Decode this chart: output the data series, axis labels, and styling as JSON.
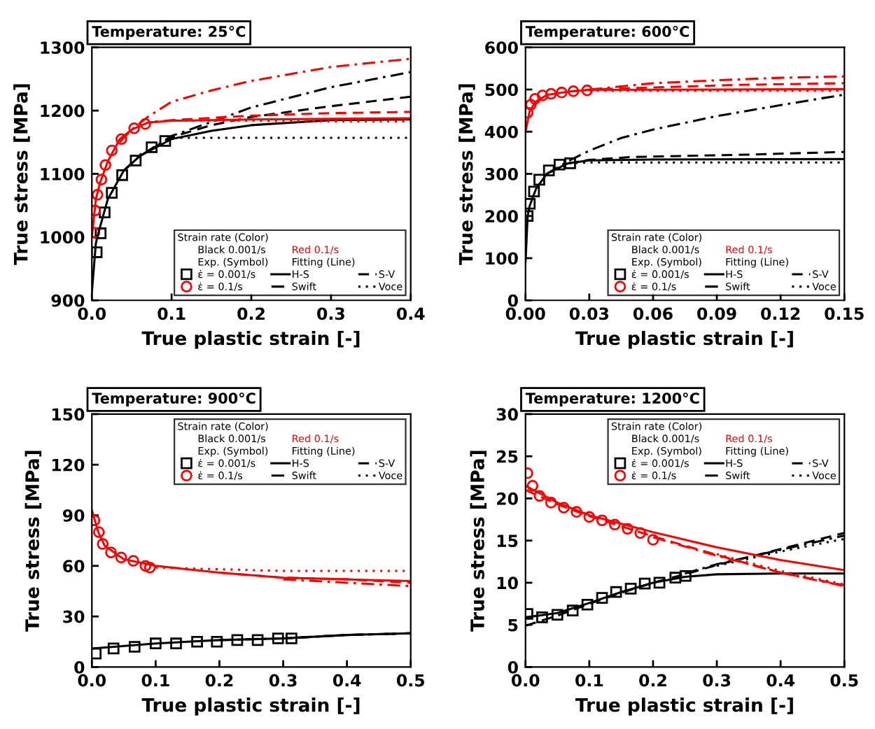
{
  "chart_data": [
    {
      "type": "line",
      "title": "Temperature: 25°C",
      "xlabel": "True plastic strain [-]",
      "ylabel": "True stress [MPa]",
      "xlim": [
        0,
        0.4
      ],
      "ylim": [
        900,
        1300
      ],
      "xticks": [
        {
          "value": 0,
          "label": "0.0"
        },
        0.1,
        0.2,
        0.3,
        0.4
      ],
      "yticks": [
        900,
        1000,
        1100,
        1200,
        1300
      ],
      "grid": false,
      "legend": "bottom right",
      "legend_title": "Strain rate (Color)",
      "annotations": [
        "Black 0.001/s",
        "Red 0.1/s",
        "Exp. (Symbol)",
        "Fitting (Line)"
      ],
      "series": [
        {
          "type": "scatter",
          "name": "ε̇ = 0.001/s",
          "color": "#000000",
          "marker": "square",
          "x": [
            0.006,
            0.011,
            0.016,
            0.025,
            0.038,
            0.055,
            0.075,
            0.092
          ],
          "values": [
            976,
            1006,
            1039,
            1070,
            1098,
            1121,
            1142,
            1152
          ]
        },
        {
          "type": "scatter",
          "name": "ε̇ = 0.1/s",
          "color": "#ff0000",
          "marker": "circle",
          "x": [
            0.003,
            0.004,
            0.007,
            0.012,
            0.017,
            0.025,
            0.037,
            0.053,
            0.067
          ],
          "values": [
            1007,
            1042,
            1067,
            1091,
            1114,
            1137,
            1155,
            1172,
            1179
          ]
        },
        {
          "name": "H-S",
          "color": "#000000",
          "line_style": "solid",
          "x": [
            0,
            0.005,
            0.01,
            0.02,
            0.04,
            0.06,
            0.1,
            0.15,
            0.2,
            0.3,
            0.4
          ],
          "values": [
            913,
            990,
            1015,
            1060,
            1105,
            1128,
            1155,
            1168,
            1177,
            1185,
            1186
          ]
        },
        {
          "name": "S-V",
          "color": "#000000",
          "line_style": "dashed",
          "x": [
            0.04,
            0.06,
            0.1,
            0.15,
            0.2,
            0.3,
            0.4
          ],
          "values": [
            1105,
            1128,
            1158,
            1177,
            1190,
            1207,
            1222
          ]
        },
        {
          "name": "Swift",
          "color": "#000000",
          "line_style": "dashdot",
          "x": [
            0.04,
            0.06,
            0.1,
            0.15,
            0.2,
            0.3,
            0.4
          ],
          "values": [
            1105,
            1128,
            1160,
            1182,
            1205,
            1237,
            1261
          ]
        },
        {
          "name": "Voce",
          "color": "#000000",
          "line_style": "dotted",
          "x": [
            0.06,
            0.1,
            0.2,
            0.3,
            0.4
          ],
          "values": [
            1130,
            1157,
            1157,
            1157,
            1157
          ]
        },
        {
          "color": "#ff0000",
          "line_style": "solid",
          "x": [
            0,
            0.005,
            0.01,
            0.02,
            0.035,
            0.05,
            0.07,
            0.1,
            0.2,
            0.3,
            0.4
          ],
          "values": [
            1000,
            1060,
            1085,
            1120,
            1155,
            1170,
            1181,
            1184,
            1186,
            1187,
            1188
          ]
        },
        {
          "color": "#ff0000",
          "line_style": "dashed",
          "x": [
            0.07,
            0.1,
            0.2,
            0.3,
            0.4
          ],
          "values": [
            1181,
            1185,
            1192,
            1196,
            1198
          ]
        },
        {
          "color": "#ff0000",
          "line_style": "dashdot",
          "x": [
            0.035,
            0.05,
            0.07,
            0.1,
            0.15,
            0.2,
            0.3,
            0.4
          ],
          "values": [
            1150,
            1170,
            1190,
            1214,
            1232,
            1247,
            1269,
            1282
          ]
        },
        {
          "color": "#ff0000",
          "line_style": "dotted",
          "x": [
            0.07,
            0.1,
            0.2,
            0.3,
            0.4
          ],
          "values": [
            1182,
            1184,
            1184,
            1183,
            1183
          ]
        }
      ]
    },
    {
      "type": "line",
      "title": "Temperature: 600°C",
      "xlabel": "True plastic strain [-]",
      "ylabel": "True stress [MPa]",
      "xlim": [
        0,
        0.15
      ],
      "ylim": [
        0,
        600
      ],
      "xticks": [
        {
          "value": 0,
          "label": "0.00"
        },
        {
          "value": 0.03,
          "label": "0.03"
        },
        {
          "value": 0.06,
          "label": "0.06"
        },
        {
          "value": 0.09,
          "label": "0.09"
        },
        {
          "value": 0.12,
          "label": "0.12"
        },
        {
          "value": 0.15,
          "label": "0.15"
        }
      ],
      "yticks": [
        0,
        100,
        200,
        300,
        400,
        500,
        600
      ],
      "grid": false,
      "legend": "bottom right",
      "legend_title": "Strain rate (Color)",
      "annotations": [
        "Black 0.001/s",
        "Red 0.1/s",
        "Exp. (Symbol)",
        "Fitting (Line)"
      ],
      "series": [
        {
          "type": "scatter",
          "name": "ε̇ = 0.001/s",
          "color": "#000000",
          "marker": "square",
          "x": [
            0.001,
            0.002,
            0.004,
            0.0065,
            0.011,
            0.016,
            0.021
          ],
          "values": [
            200,
            229,
            258,
            286,
            308,
            322,
            325
          ]
        },
        {
          "type": "scatter",
          "name": "ε̇ = 0.1/s",
          "color": "#ff0000",
          "marker": "circle",
          "x": [
            0.001,
            0.0025,
            0.0045,
            0.008,
            0.012,
            0.017,
            0.0225,
            0.029
          ],
          "values": [
            445,
            464,
            478,
            486,
            490,
            493,
            496,
            498
          ]
        },
        {
          "name": "H-S",
          "color": "#000000",
          "line_style": "solid",
          "x": [
            0,
            0.001,
            0.002,
            0.005,
            0.01,
            0.02,
            0.03,
            0.06,
            0.15
          ],
          "values": [
            90,
            200,
            225,
            265,
            300,
            325,
            332,
            334,
            335
          ]
        },
        {
          "name": "S-V",
          "color": "#000000",
          "line_style": "dashed",
          "x": [
            0.02,
            0.03,
            0.05,
            0.1,
            0.15
          ],
          "values": [
            325,
            333,
            340,
            345,
            352
          ]
        },
        {
          "name": "Swift",
          "color": "#000000",
          "line_style": "dashdot",
          "x": [
            0.01,
            0.02,
            0.03,
            0.045,
            0.06,
            0.09,
            0.12,
            0.15
          ],
          "values": [
            300,
            330,
            355,
            385,
            405,
            437,
            463,
            488
          ]
        },
        {
          "name": "Voce",
          "color": "#000000",
          "line_style": "dotted",
          "x": [
            0.02,
            0.03,
            0.15
          ],
          "values": [
            325,
            327,
            327
          ]
        },
        {
          "color": "#ff0000",
          "line_style": "solid",
          "x": [
            0,
            0.002,
            0.005,
            0.01,
            0.02,
            0.03,
            0.15
          ],
          "values": [
            400,
            450,
            472,
            487,
            495,
            499,
            501
          ]
        },
        {
          "color": "#ff0000",
          "line_style": "dashed",
          "x": [
            0.02,
            0.03,
            0.06,
            0.1,
            0.15
          ],
          "values": [
            495,
            500,
            505,
            511,
            515
          ]
        },
        {
          "color": "#ff0000",
          "line_style": "dashdot",
          "x": [
            0.03,
            0.06,
            0.09,
            0.12,
            0.15
          ],
          "values": [
            500,
            515,
            522,
            528,
            531
          ]
        },
        {
          "color": "#ff0000",
          "line_style": "dotted",
          "x": [
            0.03,
            0.15
          ],
          "values": [
            497,
            497
          ]
        }
      ]
    },
    {
      "type": "line",
      "title": "Temperature: 900°C",
      "xlabel": "True plastic strain [-]",
      "ylabel": "True stress [MPa]",
      "xlim": [
        0,
        0.5
      ],
      "ylim": [
        0,
        150
      ],
      "xticks": [
        {
          "value": 0,
          "label": "0.0"
        },
        0.1,
        0.2,
        0.3,
        0.4,
        0.5
      ],
      "yticks": [
        0,
        30,
        60,
        90,
        120,
        150
      ],
      "grid": false,
      "legend": "top right",
      "legend_title": "Strain rate (Color)",
      "annotations": [
        "Black 0.001/s",
        "Red 0.1/s",
        "Exp. (Symbol)",
        "Fitting (Line)"
      ],
      "series": [
        {
          "type": "scatter",
          "name": "ε̇ = 0.001/s",
          "color": "#000000",
          "marker": "square",
          "x": [
            0.006,
            0.034,
            0.067,
            0.1,
            0.132,
            0.165,
            0.196,
            0.228,
            0.26,
            0.292,
            0.313
          ],
          "values": [
            8,
            11,
            12,
            14,
            14,
            15,
            15,
            16,
            16,
            17,
            17
          ]
        },
        {
          "type": "scatter",
          "name": "ε̇ = 0.1/s",
          "color": "#ff0000",
          "marker": "circle",
          "x": [
            0.004,
            0.011,
            0.017,
            0.03,
            0.046,
            0.065,
            0.084,
            0.091
          ],
          "values": [
            87,
            80,
            73,
            68,
            65,
            63,
            60,
            59
          ]
        },
        {
          "name": "H-S",
          "color": "#000000",
          "line_style": "solid",
          "x": [
            0,
            0.1,
            0.2,
            0.3,
            0.4,
            0.5
          ],
          "values": [
            11,
            14,
            16,
            17,
            19,
            20
          ]
        },
        {
          "name": "S-V",
          "color": "#000000",
          "line_style": "dashed",
          "x": [
            0.3,
            0.4,
            0.5
          ],
          "values": [
            17,
            19,
            20
          ]
        },
        {
          "name": "Swift",
          "color": "#000000",
          "line_style": "dashdot",
          "x": [
            0.2,
            0.3,
            0.4,
            0.5
          ],
          "values": [
            16,
            17,
            19,
            20
          ]
        },
        {
          "name": "Voce",
          "color": "#000000",
          "line_style": "dotted",
          "x": [
            0.4,
            0.5
          ],
          "values": [
            19,
            20
          ]
        },
        {
          "color": "#ff0000",
          "line_style": "solid",
          "x": [
            0,
            0.01,
            0.02,
            0.05,
            0.1,
            0.2,
            0.3,
            0.4,
            0.5
          ],
          "values": [
            93,
            80,
            72,
            64,
            60,
            56,
            53,
            52,
            51
          ]
        },
        {
          "color": "#ff0000",
          "line_style": "dashed",
          "x": [
            0.2,
            0.3,
            0.4,
            0.5
          ],
          "values": [
            56,
            53,
            52,
            50
          ]
        },
        {
          "color": "#ff0000",
          "line_style": "dashdot",
          "x": [
            0.3,
            0.4,
            0.5
          ],
          "values": [
            52,
            50,
            48
          ]
        },
        {
          "color": "#ff0000",
          "line_style": "dotted",
          "x": [
            0.1,
            0.2,
            0.3,
            0.4,
            0.5
          ],
          "values": [
            59,
            58,
            57,
            57,
            57
          ]
        }
      ]
    },
    {
      "type": "line",
      "title": "Temperature: 1200°C",
      "xlabel": "True plastic strain [-]",
      "ylabel": "True stress [MPa]",
      "xlim": [
        0,
        0.5
      ],
      "ylim": [
        0,
        30
      ],
      "xticks": [
        {
          "value": 0,
          "label": "0.0"
        },
        0.1,
        0.2,
        0.3,
        0.4,
        0.5
      ],
      "yticks": [
        0,
        5,
        10,
        15,
        20,
        25,
        30
      ],
      "grid": false,
      "legend": "top right",
      "legend_title": "Strain rate (Color)",
      "annotations": [
        "Black 0.001/s",
        "Red 0.1/s",
        "Exp. (Symbol)",
        "Fitting (Line)"
      ],
      "series": [
        {
          "type": "scatter",
          "name": "ε̇ = 0.001/s",
          "color": "#000000",
          "marker": "square",
          "x": [
            0.003,
            0.026,
            0.05,
            0.074,
            0.097,
            0.12,
            0.142,
            0.165,
            0.187,
            0.21,
            0.235,
            0.251
          ],
          "values": [
            6.3,
            5.9,
            6.2,
            6.7,
            7.4,
            8.2,
            8.9,
            9.3,
            9.9,
            10,
            10.6,
            10.8
          ]
        },
        {
          "type": "scatter",
          "name": "ε̇ = 0.1/s",
          "color": "#ff0000",
          "marker": "circle",
          "x": [
            0.003,
            0.011,
            0.022,
            0.04,
            0.06,
            0.08,
            0.1,
            0.12,
            0.14,
            0.16,
            0.18,
            0.2
          ],
          "values": [
            23,
            21.5,
            20.3,
            19.5,
            18.9,
            18.4,
            17.8,
            17.4,
            16.9,
            16.4,
            15.9,
            15.1
          ]
        },
        {
          "name": "H-S",
          "color": "#000000",
          "line_style": "solid",
          "x": [
            0,
            0.05,
            0.1,
            0.15,
            0.2,
            0.25,
            0.3,
            0.4,
            0.5
          ],
          "values": [
            5.9,
            6.4,
            7.6,
            8.9,
            10,
            10.7,
            11,
            11.1,
            11.1
          ]
        },
        {
          "name": "S-V",
          "color": "#000000",
          "line_style": "dashed",
          "x": [
            0,
            0.05,
            0.1,
            0.15,
            0.2,
            0.25,
            0.3,
            0.4,
            0.5
          ],
          "values": [
            4.9,
            6.1,
            7.5,
            8.8,
            10,
            11,
            12.1,
            14,
            15.9
          ]
        },
        {
          "name": "Swift",
          "color": "#000000",
          "line_style": "dashdot",
          "x": [
            0.25,
            0.3,
            0.4,
            0.5
          ],
          "values": [
            11.1,
            12.2,
            13.9,
            15.6
          ]
        },
        {
          "name": "Voce",
          "color": "#000000",
          "line_style": "dotted",
          "x": [
            0.3,
            0.4,
            0.5
          ],
          "values": [
            12,
            13.7,
            15.2
          ]
        },
        {
          "color": "#ff0000",
          "line_style": "solid",
          "x": [
            0,
            0.05,
            0.1,
            0.2,
            0.3,
            0.4,
            0.5
          ],
          "values": [
            21.5,
            19.5,
            18,
            16,
            14.2,
            12.7,
            11.5
          ]
        },
        {
          "color": "#ff0000",
          "line_style": "dashed",
          "x": [
            0,
            0.05,
            0.1,
            0.2,
            0.3,
            0.4,
            0.5
          ],
          "values": [
            21,
            19.3,
            17.9,
            15.5,
            13.3,
            11.2,
            9.7
          ]
        },
        {
          "color": "#ff0000",
          "line_style": "dashdot",
          "x": [
            0.2,
            0.3,
            0.4,
            0.5
          ],
          "values": [
            15.4,
            13.2,
            11.2,
            9.6
          ]
        },
        {
          "color": "#ff0000",
          "line_style": "dotted",
          "x": [
            0.3,
            0.4,
            0.5
          ],
          "values": [
            13.4,
            11.4,
            9.8
          ]
        }
      ]
    }
  ]
}
